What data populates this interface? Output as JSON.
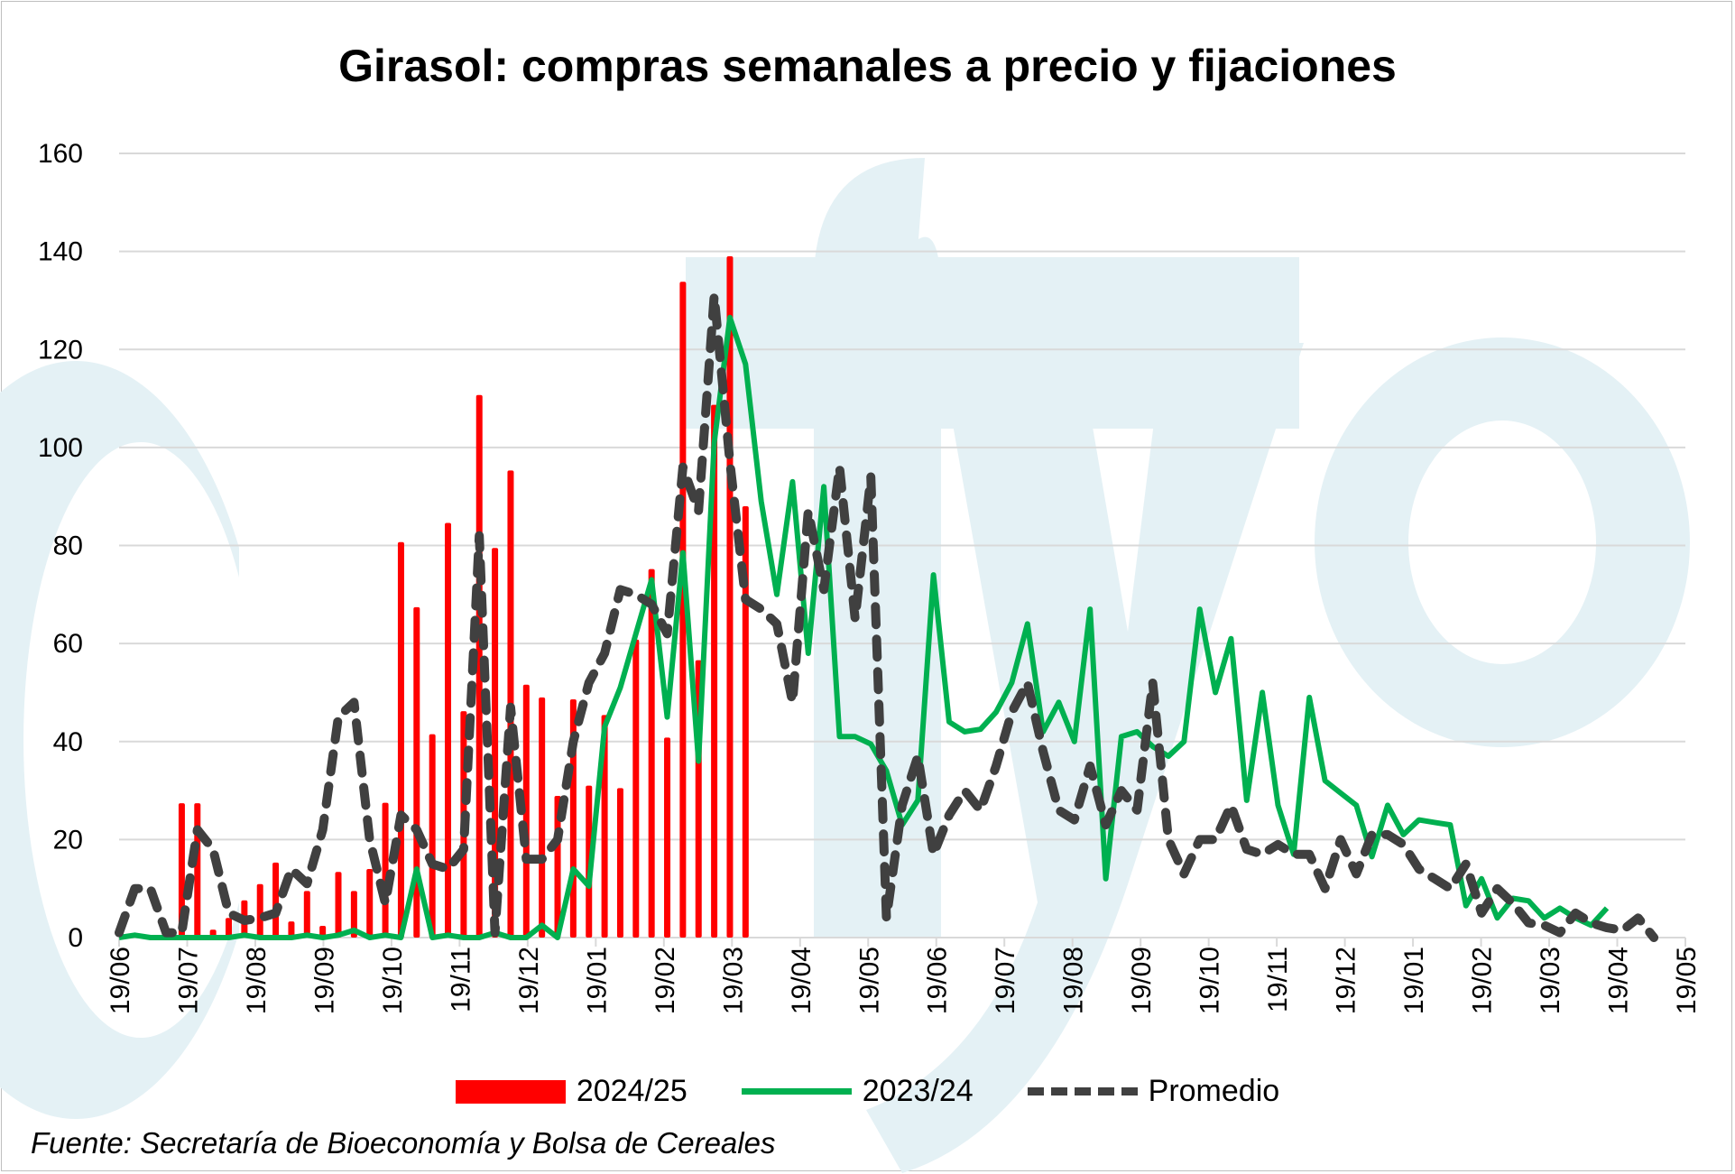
{
  "chart_data": {
    "type": "bar+line",
    "title": "Girasol: compras semanales a precio y fijaciones",
    "xlabel": "",
    "ylabel": "",
    "ylim": [
      0,
      160
    ],
    "yticks": [
      0,
      20,
      40,
      60,
      80,
      100,
      120,
      140,
      160
    ],
    "xtick_labels": [
      "19/06",
      "19/07",
      "19/08",
      "19/09",
      "19/10",
      "19/11",
      "19/12",
      "19/01",
      "19/02",
      "19/03",
      "19/04",
      "19/05",
      "19/06",
      "19/07",
      "19/08",
      "19/09",
      "19/10",
      "19/11",
      "19/12",
      "19/01",
      "19/02",
      "19/03",
      "19/04",
      "19/05"
    ],
    "x_frequency": "weekly",
    "x_start": "19/06",
    "grid": "horizontal",
    "legend_position": "bottom",
    "series": [
      {
        "name": "2024/25",
        "kind": "bar",
        "color": "#ff0000",
        "start_week": 4,
        "values": [
          27.4,
          27.4,
          1.6,
          4,
          7.6,
          10.9,
          15.3,
          3.3,
          9.5,
          2.4,
          13.4,
          9.5,
          14,
          27.5,
          80.7,
          67.4,
          41.5,
          84.6,
          46.2,
          110.7,
          79.5,
          95.3,
          51.6,
          49,
          28.9,
          48.6,
          31,
          45.4,
          30.5,
          60.8,
          75.2,
          40.8,
          133.8,
          56.6,
          108.7,
          139,
          88
        ]
      },
      {
        "name": "2023/24",
        "kind": "line",
        "color": "#00b050",
        "start_week": 0,
        "values": [
          0,
          0.5,
          0,
          0,
          0,
          0,
          0,
          0,
          0.5,
          0,
          0,
          0,
          0.5,
          0,
          0.5,
          1.5,
          0,
          0.5,
          0,
          14,
          0,
          0.5,
          0,
          0,
          1,
          0,
          0,
          2.5,
          0,
          14,
          10.5,
          43,
          51,
          62,
          73,
          45,
          78.5,
          36,
          101,
          126.5,
          117,
          89,
          70,
          93,
          58,
          92,
          41,
          41,
          39.5,
          34,
          23,
          28,
          74,
          44,
          42,
          42.5,
          46,
          52,
          64,
          42,
          48,
          40,
          67,
          12,
          41,
          42,
          39,
          37,
          40,
          67,
          50,
          61,
          28,
          50,
          27,
          17,
          49,
          32,
          29.5,
          27,
          16.5,
          27,
          21,
          24,
          23.5,
          23,
          6.5,
          12,
          4,
          8,
          7.5,
          4,
          6,
          4,
          2.5,
          6
        ]
      },
      {
        "name": "Promedio",
        "kind": "dashed-line",
        "color": "#404040",
        "start_week": 0,
        "values": [
          1,
          10,
          10,
          1,
          1,
          22,
          18,
          5,
          3.5,
          4,
          5,
          14,
          11,
          22,
          45,
          48,
          20,
          7,
          25,
          22,
          15,
          14,
          18,
          82,
          1,
          47,
          16,
          16,
          20,
          40,
          52,
          58,
          71,
          70,
          68,
          62,
          96,
          87,
          131,
          97,
          69,
          67,
          64,
          48,
          87,
          71,
          96,
          65,
          94,
          4,
          27,
          37,
          17,
          25,
          30,
          26,
          35,
          46,
          52,
          38,
          26,
          24,
          35,
          23,
          30,
          26,
          52,
          20,
          13,
          20,
          20,
          27,
          18,
          17,
          19,
          17,
          17,
          10,
          20,
          13,
          21,
          21,
          19,
          14,
          12,
          10,
          15,
          5,
          10,
          7,
          3,
          2.5,
          1,
          5,
          3,
          2,
          1.5,
          4,
          0
        ]
      }
    ],
    "watermark_colors": "#e4f1f5"
  },
  "legend": {
    "items": [
      "2024/25",
      "2023/24",
      "Promedio"
    ]
  },
  "source": "Fuente: Secretaría de Bioeconomía y Bolsa de Cereales"
}
